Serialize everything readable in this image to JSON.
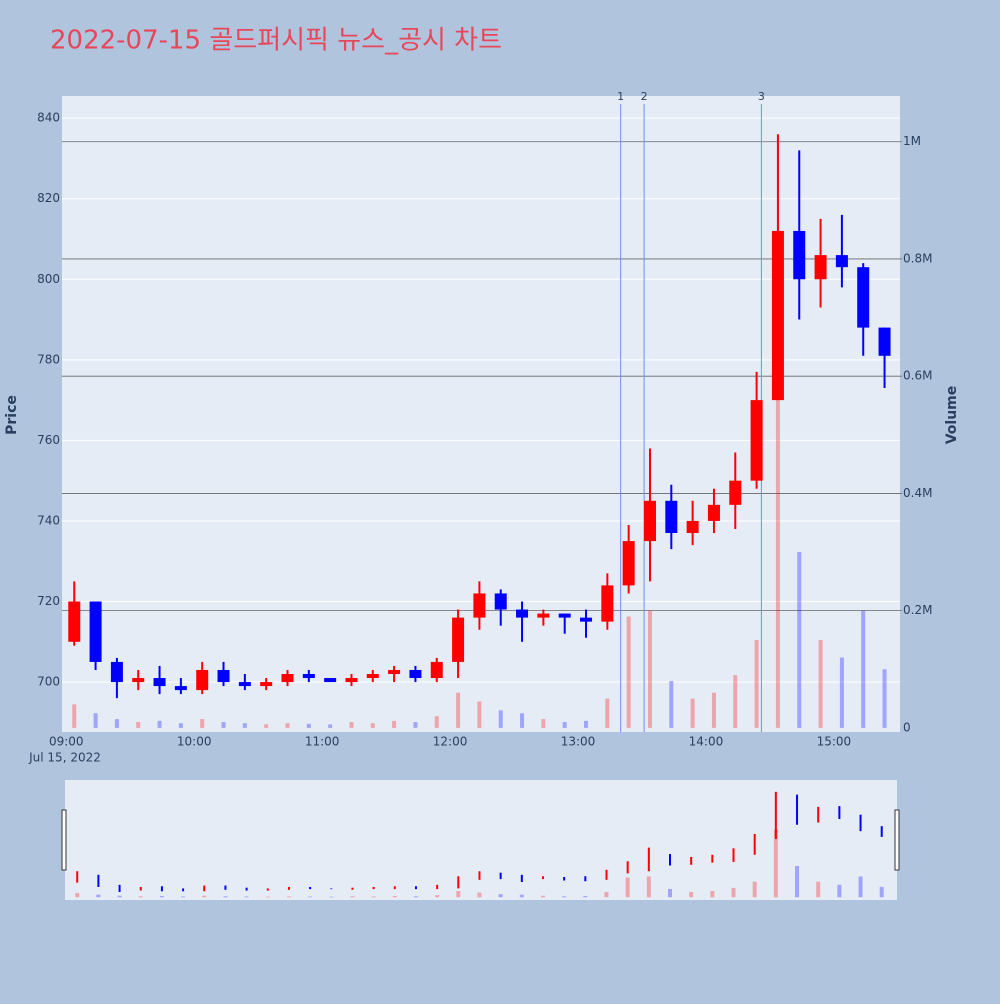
{
  "chart_data": {
    "type": "candlestick",
    "title": "2022-07-15 골드퍼시픽 뉴스_공시 차트",
    "y_title": "Price",
    "y2_title": "Volume",
    "x_date_label": "Jul 15, 2022",
    "x": [
      "09:00",
      "09:10",
      "09:20",
      "09:30",
      "09:40",
      "09:50",
      "10:00",
      "10:10",
      "10:20",
      "10:30",
      "10:40",
      "10:50",
      "11:00",
      "11:10",
      "11:20",
      "11:30",
      "11:40",
      "11:50",
      "12:00",
      "12:10",
      "12:20",
      "12:30",
      "12:40",
      "12:50",
      "13:00",
      "13:10",
      "13:20",
      "13:30",
      "13:40",
      "13:50",
      "14:00",
      "14:10",
      "14:20",
      "14:30",
      "14:40",
      "14:50",
      "15:00",
      "15:10",
      "15:20"
    ],
    "open": [
      710,
      720,
      705,
      700,
      701,
      699,
      698,
      703,
      700,
      699,
      700,
      702,
      701,
      700,
      701,
      702,
      703,
      701,
      705,
      716,
      722,
      718,
      716,
      717,
      716,
      715,
      724,
      735,
      745,
      737,
      740,
      744,
      750,
      770,
      812,
      800,
      806,
      803,
      788
    ],
    "high": [
      725,
      720,
      706,
      703,
      704,
      701,
      705,
      705,
      702,
      701,
      703,
      703,
      701,
      702,
      703,
      704,
      704,
      706,
      718,
      725,
      723,
      720,
      718,
      717,
      718,
      727,
      739,
      758,
      749,
      745,
      748,
      757,
      777,
      836,
      832,
      815,
      816,
      804,
      788
    ],
    "low": [
      709,
      703,
      696,
      698,
      697,
      697,
      697,
      699,
      698,
      698,
      699,
      700,
      700,
      699,
      700,
      700,
      700,
      700,
      701,
      713,
      714,
      710,
      714,
      712,
      711,
      713,
      722,
      725,
      733,
      734,
      737,
      738,
      748,
      770,
      790,
      793,
      798,
      781,
      773
    ],
    "close": [
      720,
      705,
      700,
      701,
      699,
      698,
      703,
      700,
      699,
      700,
      702,
      701,
      700,
      701,
      702,
      703,
      701,
      705,
      716,
      722,
      718,
      716,
      717,
      716,
      715,
      724,
      735,
      745,
      737,
      740,
      744,
      750,
      770,
      812,
      800,
      806,
      803,
      788,
      781
    ],
    "volume": [
      40000,
      25000,
      15000,
      10000,
      12000,
      8000,
      15000,
      10000,
      8000,
      6000,
      8000,
      7000,
      6000,
      10000,
      8000,
      12000,
      10000,
      20000,
      60000,
      45000,
      30000,
      25000,
      15000,
      10000,
      12000,
      50000,
      190000,
      200000,
      80000,
      50000,
      60000,
      90000,
      150000,
      650000,
      300000,
      150000,
      120000,
      200000,
      100000
    ],
    "increasing_color": "#ff0000",
    "decreasing_color": "#0000ff",
    "xlim": [
      "08:58",
      "15:31"
    ],
    "xticks": [
      "09:00",
      "10:00",
      "11:00",
      "12:00",
      "13:00",
      "14:00",
      "15:00"
    ],
    "ylim": [
      687.6,
      845.5
    ],
    "yticks": [
      700,
      720,
      740,
      760,
      780,
      800,
      820,
      840
    ],
    "y2lim": [
      -7000,
      1078000
    ],
    "y2ticks": [
      0,
      {
        "value": 200000,
        "label": "0.2M"
      },
      {
        "value": 400000,
        "label": "0.4M"
      },
      {
        "value": 600000,
        "label": "0.6M"
      },
      {
        "value": 800000,
        "label": "0.8M"
      },
      {
        "value": 1000000,
        "label": "1M"
      }
    ],
    "grid": true,
    "annotations": [
      {
        "x": "13:20",
        "text": "1"
      },
      {
        "x": "13:31",
        "text": "2"
      },
      {
        "x": "14:26",
        "text": "3"
      }
    ]
  }
}
